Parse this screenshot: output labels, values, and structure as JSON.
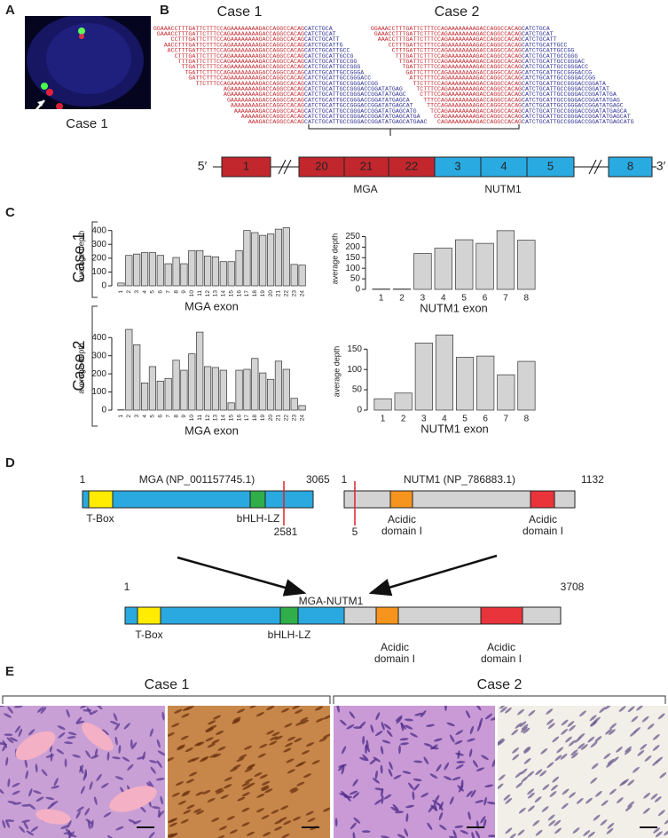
{
  "panel_labels": [
    "A",
    "B",
    "C",
    "D",
    "E"
  ],
  "panel_a": {
    "caption": "Case 1"
  },
  "panel_b": {
    "case1": {
      "title": "Case 1",
      "reads": [
        [
          "GGAAACCTTTGATTCTTTCCAGAAAAAAAAGACCAGGCCACAG",
          "CATCTGCA"
        ],
        [
          "GAAACCTTTGATTCTTTCCAGAAAAAAAAGACCAGGCCACAG",
          "CATCTGCAT"
        ],
        [
          "CCTTTGATTCTTTCCAGAAAAAAAAGACCAGGCCACAG",
          "CATCTGCATT"
        ],
        [
          "AACCTTTGATTCTTTCCAGAAAAAAAAGACCAGGCCACAG",
          "CATCTGCATTG"
        ],
        [
          "ACCTTTGATTCTTTCCAGAAAAAAAAGACCAGGCCACAG",
          "CATCTGCATTGCC"
        ],
        [
          "CTTTGATTCTTTCCAGAAAAAAAAGACCAGGCCACAG",
          "CATCTGCATTGCCG"
        ],
        [
          "TTTGATTCTTTCCAGAAAAAAAAGACCAGGCCACAG",
          "CATCTGCATTGCCGG"
        ],
        [
          "TTGATTCTTTCCAGAAAAAAAAGACCAGGCCACAG",
          "CATCTGCATTGCCGGG"
        ],
        [
          "TGATTCTTTCCAGAAAAAAAAGACCAGGCCACAG",
          "CATCTGCATTGCCGGGA"
        ],
        [
          "GATTCTTTCCAGAAAAAAAAGACCAGGCCACAG",
          "CATCTGCATTGCCGGGACC"
        ],
        [
          "TTCTTTCCAGAAAAAAAAGACCAGGCCACAG",
          "CATCTGCATTGCCGGGACCGG"
        ],
        [
          "AGAAAAAAAAGACCAGGCCACAG",
          "CATCTGCATTGCCGGGACCGGATATGAG"
        ],
        [
          "AGAAAAAAAAGACCAGGCCACAG",
          "CATCTGCATTGCCGGGACCGGATATGAGC"
        ],
        [
          "GAAAAAAAAGACCAGGCCACAG",
          "CATCTGCATTGCCGGGACCGGATATGAGCA"
        ],
        [
          "AAAAAAAAGACCAGGCCACAG",
          "CATCTGCATTGCCGGGACCGGATATGAGCAT"
        ],
        [
          "AAAAAAAGACCAGGCCACAG",
          "CATCTGCATTGCCGGGACCGGATATGAGCATG"
        ],
        [
          "AAAAAGACCAGGCCACAG",
          "CATCTGCATTGCCGGGACCGGATATGAGCATGA"
        ],
        [
          "AAAGACCAGGCCACAG",
          "CATCTGCATTGCCGGGACCGGATATGAGCATGAAC"
        ]
      ]
    },
    "case2": {
      "title": "Case 2",
      "reads": [
        [
          "GGAAACCTTTGATTCTTTCCAGAAAAAAAAGACCAGGCCACAG",
          "CATCTGCA"
        ],
        [
          "GAAACCTTTGATTCTTTCCAGAAAAAAAAGACCAGGCCACAG",
          "CATCTGCAT"
        ],
        [
          "AAACCTTTGATTCTTTCCAGAAAAAAAAGACCAGGCCACAG",
          "CATCTGCATT"
        ],
        [
          "CCTTTGATTCTTTCCAGAAAAAAAAGACCAGGCCACAG",
          "CATCTGCATTGCC"
        ],
        [
          "CTTTGATTCTTTCCAGAAAAAAAAGACCAGGCCACAG",
          "CATCTGCATTGCCGG"
        ],
        [
          "TTTGATTCTTTCCAGAAAAAAAAGACCAGGCCACAG",
          "CATCTGCATTGCCGGG"
        ],
        [
          "TTGATTCTTTCCAGAAAAAAAAGACCAGGCCACAG",
          "CATCTGCATTGCCGGGAC"
        ],
        [
          "TGATTCTTTCCAGAAAAAAAAGACCAGGCCACAG",
          "CATCTGCATTGCCGGGACC"
        ],
        [
          "GATTCTTTCCAGAAAAAAAAGACCAGGCCACAG",
          "CATCTGCATTGCCGGGACCG"
        ],
        [
          "ATTCTTTCCAGAAAAAAAAGACCAGGCCACAG",
          "CATCTGCATTGCCGGGACCGG"
        ],
        [
          "TTCTTTCCAGAAAAAAAAGACCAGGCCACAG",
          "CATCTGCATTGCCGGGACCGGATA"
        ],
        [
          "TCTTTCCAGAAAAAAAAGACCAGGCCACAG",
          "CATCTGCATTGCCGGGACCGGATAT"
        ],
        [
          "CTTTCCAGAAAAAAAAGACCAGGCCACAG",
          "CATCTGCATTGCCGGGACCGGATATGA"
        ],
        [
          "TTTCCAGAAAAAAAAGACCAGGCCACAG",
          "CATCTGCATTGCCGGGACCGGATATGAG"
        ],
        [
          "TTCCAGAAAAAAAAGACCAGGCCACAG",
          "CATCTGCATTGCCGGGACCGGATATGAGC"
        ],
        [
          "TCCAGAAAAAAAAGACCAGGCCACAG",
          "CATCTGCATTGCCGGGACCGGATATGAGCA"
        ],
        [
          "CCAGAAAAAAAAGACCAGGCCACAG",
          "CATCTGCATTGCCGGGACCGGATATGAGCAT"
        ],
        [
          "CAGAAAAAAAAGACCAGGCCACAG",
          "CATCTGCATTGCCGGGACCGGATATGAGCATG"
        ]
      ]
    },
    "five_prime": "5′",
    "three_prime": "3′",
    "exons": [
      "1",
      "20",
      "21",
      "22",
      "3",
      "4",
      "5",
      "8"
    ],
    "gene1": "MGA",
    "gene2": "NUTM1"
  },
  "panel_c": {
    "row_labels": [
      "Case 1",
      "Case 2"
    ]
  },
  "chart_data": [
    {
      "type": "bar",
      "color": "#d3d3d3",
      "xlabel": "MGA exon",
      "ylabel": "average depth",
      "categories": [
        "1",
        "2",
        "3",
        "4",
        "5",
        "6",
        "7",
        "8",
        "9",
        "10",
        "11",
        "12",
        "13",
        "14",
        "15",
        "16",
        "17",
        "18",
        "19",
        "20",
        "21",
        "22",
        "23",
        "24"
      ],
      "values": [
        20,
        220,
        230,
        240,
        240,
        220,
        160,
        205,
        160,
        255,
        255,
        215,
        210,
        175,
        175,
        255,
        400,
        385,
        365,
        375,
        410,
        420,
        155,
        150
      ],
      "ylim": [
        0,
        430
      ],
      "yticks": [
        0,
        100,
        200,
        300,
        400
      ]
    },
    {
      "type": "bar",
      "color": "#d3d3d3",
      "xlabel": "NUTM1 exon",
      "ylabel": "average depth",
      "categories": [
        "1",
        "2",
        "3",
        "4",
        "5",
        "6",
        "7",
        "8"
      ],
      "values": [
        2,
        2,
        170,
        195,
        235,
        218,
        278,
        233
      ],
      "ylim": [
        0,
        290
      ],
      "yticks": [
        0,
        50,
        100,
        150,
        200,
        250
      ]
    },
    {
      "type": "bar",
      "color": "#d3d3d3",
      "xlabel": "MGA exon",
      "ylabel": "average depth",
      "categories": [
        "1",
        "2",
        "3",
        "4",
        "5",
        "6",
        "7",
        "8",
        "9",
        "10",
        "11",
        "12",
        "13",
        "14",
        "15",
        "16",
        "17",
        "18",
        "19",
        "20",
        "21",
        "22",
        "23",
        "24"
      ],
      "values": [
        2,
        445,
        360,
        150,
        240,
        160,
        175,
        275,
        220,
        310,
        430,
        240,
        235,
        220,
        40,
        220,
        225,
        285,
        205,
        170,
        270,
        225,
        65,
        25
      ],
      "ylim": [
        0,
        460
      ],
      "yticks": [
        0,
        100,
        200,
        300,
        400
      ]
    },
    {
      "type": "bar",
      "color": "#d3d3d3",
      "xlabel": "NUTM1 exon",
      "ylabel": "average depth",
      "categories": [
        "1",
        "2",
        "3",
        "4",
        "5",
        "6",
        "7",
        "8"
      ],
      "values": [
        28,
        42,
        165,
        185,
        130,
        133,
        87,
        120
      ],
      "ylim": [
        0,
        190
      ],
      "yticks": [
        0,
        50,
        100,
        150
      ]
    }
  ],
  "panel_d": {
    "mga": {
      "name": "MGA  (NP_001157745.1)",
      "start": "1",
      "end": "3065",
      "break": "2581",
      "tbox": "T-Box",
      "bhlh": "bHLH-LZ"
    },
    "nutm1": {
      "name": "NUTM1 (NP_786883.1)",
      "start": "1",
      "end": "1132",
      "break": "5",
      "acidic1": [
        "Acidic",
        "domain I"
      ],
      "acidic2": [
        "Acidic",
        "domain I"
      ]
    },
    "fusion": {
      "name": "MGA-NUTM1",
      "start": "1",
      "end": "3708",
      "tbox": "T-Box",
      "bhlh": "bHLH-LZ",
      "acidic1": [
        "Acidic",
        "domain I"
      ],
      "acidic2": [
        "Acidic",
        "domain I"
      ]
    }
  },
  "panel_e": {
    "case1": "Case 1",
    "case2": "Case 2"
  }
}
